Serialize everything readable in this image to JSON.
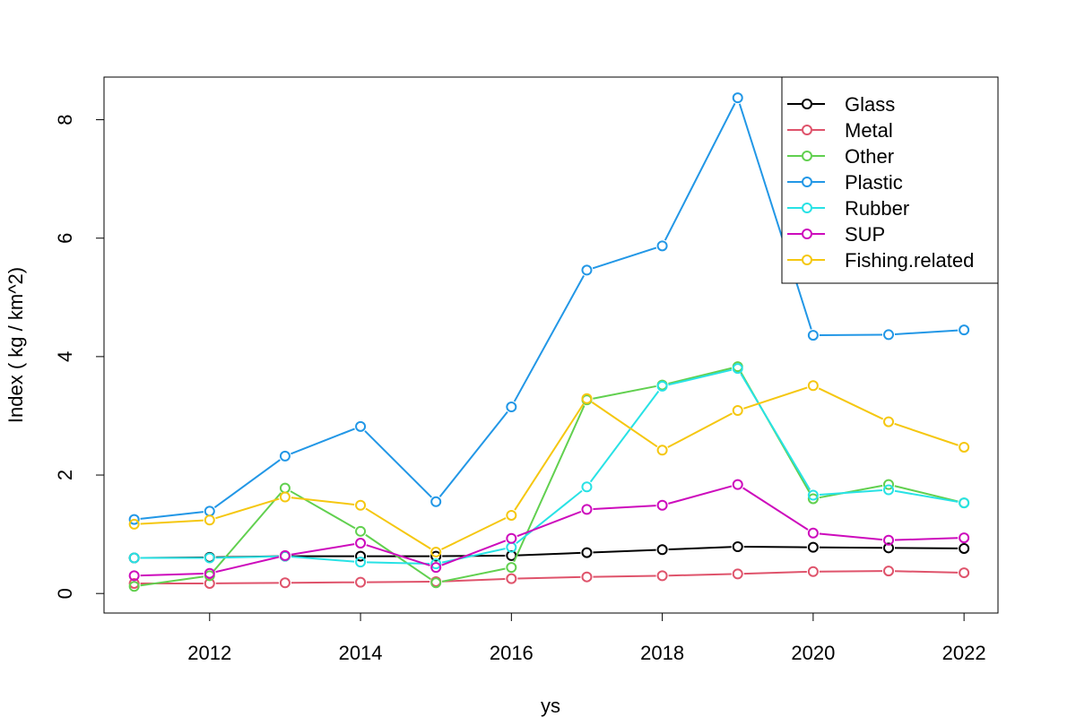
{
  "chart_data": {
    "type": "line",
    "title": "",
    "xlabel": "ys",
    "ylabel": "Index ( kg / km^2)",
    "xlim": [
      2010.6,
      2022.45
    ],
    "ylim": [
      -0.33,
      8.72
    ],
    "x_ticks": [
      2012,
      2014,
      2016,
      2018,
      2020,
      2022
    ],
    "y_ticks": [
      0,
      2,
      4,
      6,
      8
    ],
    "grid": false,
    "legend_position": "top-right",
    "x": [
      2011,
      2012,
      2013,
      2014,
      2015,
      2016,
      2017,
      2018,
      2019,
      2020,
      2021,
      2022
    ],
    "series": [
      {
        "name": "Glass",
        "color": "#000000",
        "values": [
          0.6,
          0.61,
          0.63,
          0.63,
          0.63,
          0.64,
          0.69,
          0.74,
          0.79,
          0.78,
          0.77,
          0.76
        ]
      },
      {
        "name": "Metal",
        "color": "#DF536B",
        "values": [
          0.17,
          0.17,
          0.18,
          0.19,
          0.2,
          0.25,
          0.28,
          0.3,
          0.33,
          0.37,
          0.38,
          0.35
        ]
      },
      {
        "name": "Other",
        "color": "#61D04F",
        "values": [
          0.12,
          0.3,
          1.78,
          1.05,
          0.18,
          0.44,
          3.27,
          3.52,
          3.83,
          1.6,
          1.84,
          1.53
        ]
      },
      {
        "name": "Plastic",
        "color": "#2297E6",
        "values": [
          1.25,
          1.39,
          2.32,
          2.82,
          1.55,
          3.15,
          5.46,
          5.87,
          8.37,
          4.36,
          4.37,
          4.45
        ]
      },
      {
        "name": "Rubber",
        "color": "#28E2E5",
        "values": [
          0.6,
          0.6,
          0.63,
          0.53,
          0.5,
          0.78,
          1.8,
          3.5,
          3.8,
          1.66,
          1.75,
          1.53
        ]
      },
      {
        "name": "SUP",
        "color": "#CD0BBC",
        "values": [
          0.3,
          0.34,
          0.64,
          0.85,
          0.44,
          0.93,
          1.42,
          1.49,
          1.84,
          1.02,
          0.9,
          0.94
        ]
      },
      {
        "name": "Fishing.related",
        "color": "#F5C710",
        "values": [
          1.17,
          1.24,
          1.63,
          1.49,
          0.7,
          1.32,
          3.29,
          2.42,
          3.09,
          3.51,
          2.9,
          2.47
        ]
      }
    ]
  }
}
